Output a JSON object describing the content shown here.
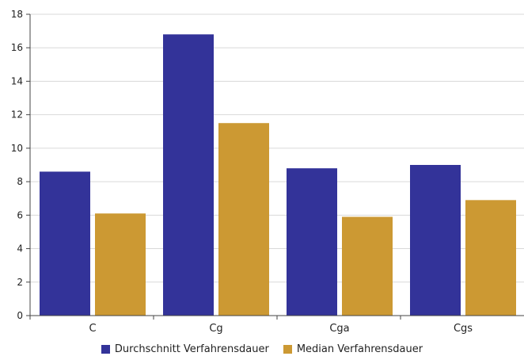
{
  "chart_data": {
    "type": "bar",
    "categories": [
      "C",
      "Cg",
      "Cga",
      "Cgs"
    ],
    "series": [
      {
        "name": "Durchschnitt Verfahrensdauer",
        "values": [
          8.6,
          16.8,
          8.8,
          9.0
        ],
        "color": "#333399"
      },
      {
        "name": "Median Verfahrensdauer",
        "values": [
          6.1,
          11.5,
          5.9,
          6.9
        ],
        "color": "#cc9933"
      }
    ],
    "ylim": [
      0,
      18
    ],
    "yticks": [
      "0",
      "2",
      "4",
      "6",
      "8",
      "10",
      "12",
      "14",
      "16",
      "18"
    ],
    "grid": true,
    "legend_position": "bottom"
  }
}
